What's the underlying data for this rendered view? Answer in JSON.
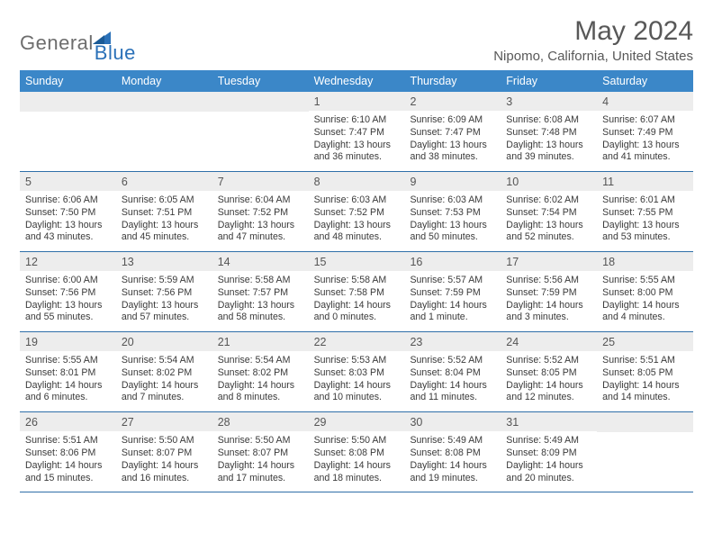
{
  "logo": {
    "general": "General",
    "blue": "Blue"
  },
  "title": "May 2024",
  "location": "Nipomo, California, United States",
  "colors": {
    "header_bg": "#3b87c8",
    "row_divider": "#2f6fa8",
    "daynum_bg": "#ededed",
    "text_gray": "#585858",
    "logo_gray": "#6d6d6d",
    "logo_blue": "#2b71b8"
  },
  "weekdays": [
    "Sunday",
    "Monday",
    "Tuesday",
    "Wednesday",
    "Thursday",
    "Friday",
    "Saturday"
  ],
  "weeks": [
    [
      {
        "n": "",
        "blank": true
      },
      {
        "n": "",
        "blank": true
      },
      {
        "n": "",
        "blank": true
      },
      {
        "n": "1",
        "sunrise": "6:10 AM",
        "sunset": "7:47 PM",
        "daylight": "13 hours and 36 minutes."
      },
      {
        "n": "2",
        "sunrise": "6:09 AM",
        "sunset": "7:47 PM",
        "daylight": "13 hours and 38 minutes."
      },
      {
        "n": "3",
        "sunrise": "6:08 AM",
        "sunset": "7:48 PM",
        "daylight": "13 hours and 39 minutes."
      },
      {
        "n": "4",
        "sunrise": "6:07 AM",
        "sunset": "7:49 PM",
        "daylight": "13 hours and 41 minutes."
      }
    ],
    [
      {
        "n": "5",
        "sunrise": "6:06 AM",
        "sunset": "7:50 PM",
        "daylight": "13 hours and 43 minutes."
      },
      {
        "n": "6",
        "sunrise": "6:05 AM",
        "sunset": "7:51 PM",
        "daylight": "13 hours and 45 minutes."
      },
      {
        "n": "7",
        "sunrise": "6:04 AM",
        "sunset": "7:52 PM",
        "daylight": "13 hours and 47 minutes."
      },
      {
        "n": "8",
        "sunrise": "6:03 AM",
        "sunset": "7:52 PM",
        "daylight": "13 hours and 48 minutes."
      },
      {
        "n": "9",
        "sunrise": "6:03 AM",
        "sunset": "7:53 PM",
        "daylight": "13 hours and 50 minutes."
      },
      {
        "n": "10",
        "sunrise": "6:02 AM",
        "sunset": "7:54 PM",
        "daylight": "13 hours and 52 minutes."
      },
      {
        "n": "11",
        "sunrise": "6:01 AM",
        "sunset": "7:55 PM",
        "daylight": "13 hours and 53 minutes."
      }
    ],
    [
      {
        "n": "12",
        "sunrise": "6:00 AM",
        "sunset": "7:56 PM",
        "daylight": "13 hours and 55 minutes."
      },
      {
        "n": "13",
        "sunrise": "5:59 AM",
        "sunset": "7:56 PM",
        "daylight": "13 hours and 57 minutes."
      },
      {
        "n": "14",
        "sunrise": "5:58 AM",
        "sunset": "7:57 PM",
        "daylight": "13 hours and 58 minutes."
      },
      {
        "n": "15",
        "sunrise": "5:58 AM",
        "sunset": "7:58 PM",
        "daylight": "14 hours and 0 minutes."
      },
      {
        "n": "16",
        "sunrise": "5:57 AM",
        "sunset": "7:59 PM",
        "daylight": "14 hours and 1 minute."
      },
      {
        "n": "17",
        "sunrise": "5:56 AM",
        "sunset": "7:59 PM",
        "daylight": "14 hours and 3 minutes."
      },
      {
        "n": "18",
        "sunrise": "5:55 AM",
        "sunset": "8:00 PM",
        "daylight": "14 hours and 4 minutes."
      }
    ],
    [
      {
        "n": "19",
        "sunrise": "5:55 AM",
        "sunset": "8:01 PM",
        "daylight": "14 hours and 6 minutes."
      },
      {
        "n": "20",
        "sunrise": "5:54 AM",
        "sunset": "8:02 PM",
        "daylight": "14 hours and 7 minutes."
      },
      {
        "n": "21",
        "sunrise": "5:54 AM",
        "sunset": "8:02 PM",
        "daylight": "14 hours and 8 minutes."
      },
      {
        "n": "22",
        "sunrise": "5:53 AM",
        "sunset": "8:03 PM",
        "daylight": "14 hours and 10 minutes."
      },
      {
        "n": "23",
        "sunrise": "5:52 AM",
        "sunset": "8:04 PM",
        "daylight": "14 hours and 11 minutes."
      },
      {
        "n": "24",
        "sunrise": "5:52 AM",
        "sunset": "8:05 PM",
        "daylight": "14 hours and 12 minutes."
      },
      {
        "n": "25",
        "sunrise": "5:51 AM",
        "sunset": "8:05 PM",
        "daylight": "14 hours and 14 minutes."
      }
    ],
    [
      {
        "n": "26",
        "sunrise": "5:51 AM",
        "sunset": "8:06 PM",
        "daylight": "14 hours and 15 minutes."
      },
      {
        "n": "27",
        "sunrise": "5:50 AM",
        "sunset": "8:07 PM",
        "daylight": "14 hours and 16 minutes."
      },
      {
        "n": "28",
        "sunrise": "5:50 AM",
        "sunset": "8:07 PM",
        "daylight": "14 hours and 17 minutes."
      },
      {
        "n": "29",
        "sunrise": "5:50 AM",
        "sunset": "8:08 PM",
        "daylight": "14 hours and 18 minutes."
      },
      {
        "n": "30",
        "sunrise": "5:49 AM",
        "sunset": "8:08 PM",
        "daylight": "14 hours and 19 minutes."
      },
      {
        "n": "31",
        "sunrise": "5:49 AM",
        "sunset": "8:09 PM",
        "daylight": "14 hours and 20 minutes."
      },
      {
        "n": "",
        "blank": true
      }
    ]
  ]
}
